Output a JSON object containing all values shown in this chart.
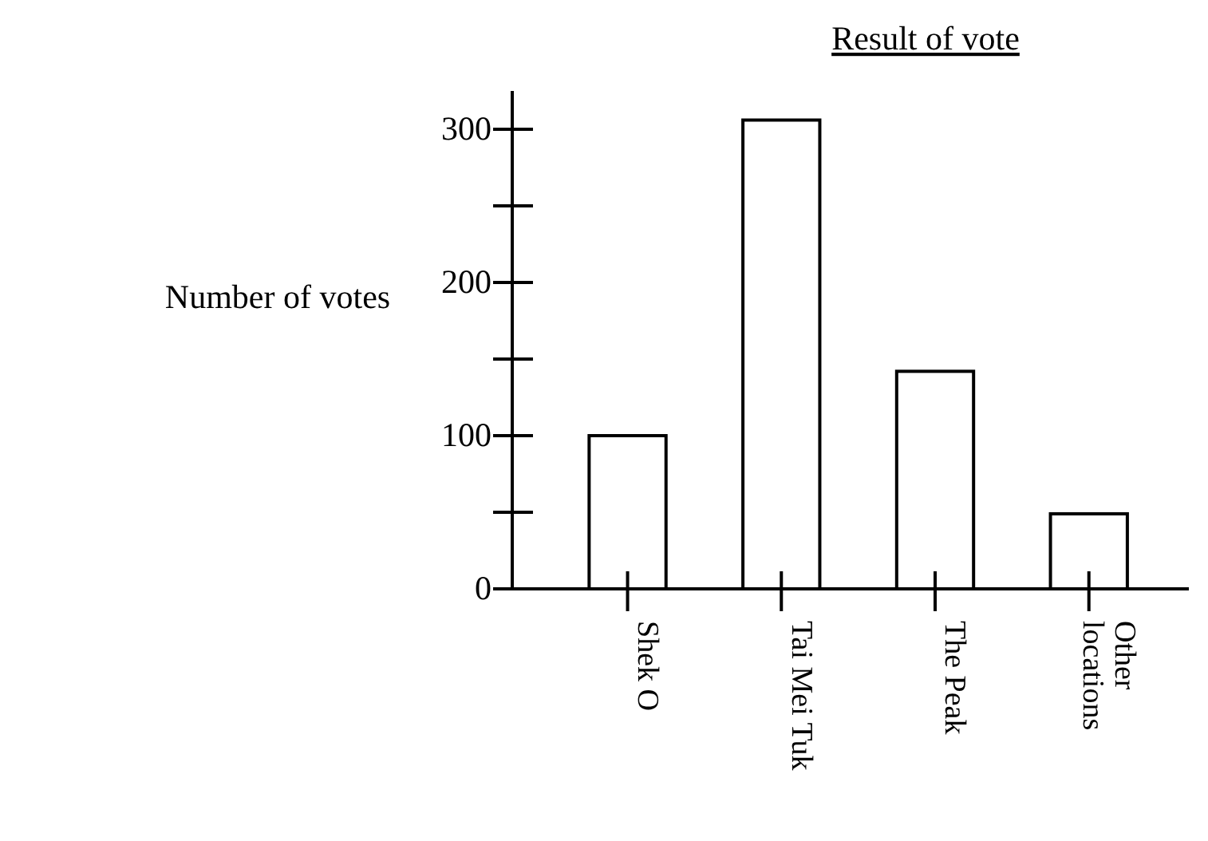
{
  "chart_data": {
    "type": "bar",
    "title": "Result of vote",
    "ylabel": "Number of votes",
    "categories": [
      "Shek O",
      "Tai Mei Tuk",
      "The Peak",
      "Other locations"
    ],
    "values": [
      100,
      306,
      142,
      49
    ],
    "color": "#ffffff",
    "ylim": [
      0,
      325
    ],
    "yticks": [
      0,
      {
        "value": 50,
        "label": null
      },
      100,
      {
        "value": 150,
        "label": null
      },
      200,
      {
        "value": 250,
        "label": null
      },
      300
    ],
    "grid": false
  }
}
